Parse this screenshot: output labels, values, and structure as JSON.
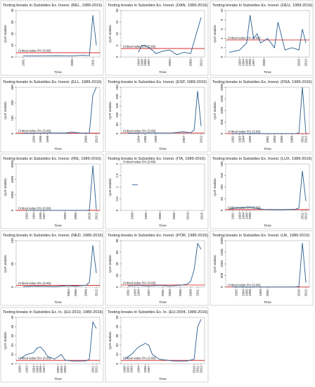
{
  "chart_data": [
    {
      "type": "line",
      "title": "Testing breaks in Subsidies Ex. Invest. (BEL, 1989-2016)",
      "y_label": "QLR statistic",
      "x_label": "Time",
      "color": "#2a5d8f",
      "x": [
        1991,
        1995,
        2000,
        2005,
        2008,
        2010,
        2011,
        2012
      ],
      "values": [
        1,
        1,
        1.2,
        1,
        1.5,
        1.2,
        36,
        10
      ],
      "xlim": [
        1989,
        2013
      ],
      "xticks": [
        1991,
        2005,
        2011
      ],
      "ylim": [
        0,
        40
      ],
      "yticks": [
        0,
        10,
        20,
        30,
        40
      ],
      "critical_value": 3.66,
      "critical_label": "Critical value 5% (3.66)",
      "critical_color": "#d01010"
    },
    {
      "type": "line",
      "title": "Testing breaks in Subsidies Ex. Invest. (DAN, 1989-2016)",
      "y_label": "QLR statistic",
      "x_label": "Time",
      "color": "#2a5d8f",
      "x": [
        1994,
        1995,
        1996,
        1998,
        1999,
        2001,
        2003,
        2005,
        2007,
        2009,
        2011,
        2012
      ],
      "values": [
        2,
        5,
        5,
        3,
        1.5,
        2.5,
        3,
        1,
        2,
        1.5,
        12,
        17
      ],
      "xlim": [
        1989,
        2013
      ],
      "xticks": [
        1994,
        1995,
        1996,
        1997,
        2003,
        2009,
        2012
      ],
      "ylim": [
        0,
        20
      ],
      "yticks": [
        0,
        5,
        10,
        15,
        20
      ],
      "critical_value": 3.66,
      "critical_label": "Critical value 5% (3.66)",
      "critical_color": "#d01010"
    },
    {
      "type": "line",
      "title": "Testing breaks in Subsidies Ex. Invest. (DEU, 1989-2016)",
      "y_label": "QLR statistic",
      "x_label": "Time",
      "color": "#2a5d8f",
      "x": [
        1990,
        1993,
        1995,
        1996,
        1997,
        1998,
        1999,
        2001,
        2003,
        2004,
        2006,
        2008,
        2010,
        2011,
        2012
      ],
      "values": [
        1,
        1.5,
        3,
        9,
        4,
        5,
        3,
        4,
        2,
        7.5,
        1.5,
        2,
        1.5,
        6,
        3
      ],
      "xlim": [
        1989,
        2013
      ],
      "xticks": [
        1993,
        1994,
        1995,
        1996,
        1997,
        2000,
        2010,
        2012
      ],
      "ylim": [
        0,
        10
      ],
      "yticks": [
        0,
        2,
        4,
        6,
        8,
        10
      ],
      "critical_value": 3.66,
      "critical_label": "Critical value 5% (3.66)",
      "critical_color": "#d01010"
    },
    {
      "type": "line",
      "title": "Testing breaks in Subsidies Ex. Invest. (ELL, 1989-2016)",
      "y_label": "QLR statistic",
      "x_label": "Time",
      "color": "#2a5d8f",
      "x": [
        1991,
        1995,
        1999,
        2003,
        2005,
        2008,
        2010,
        2011,
        2012
      ],
      "values": [
        2,
        3,
        5,
        4,
        10,
        3,
        5,
        250,
        300
      ],
      "xlim": [
        1989,
        2013
      ],
      "xticks": [
        1994,
        1996,
        1998,
        2009,
        2012
      ],
      "ylim": [
        0,
        300
      ],
      "yticks": [
        0,
        100,
        200,
        300
      ],
      "critical_value": 3.66,
      "critical_label": "Critical value 5% (3.66)",
      "critical_color": "#d01010"
    },
    {
      "type": "line",
      "title": "Testing breaks in Subsidies Ex. Invest. (ESP, 1989-2016)",
      "y_label": "QLR statistic",
      "x_label": "Time",
      "color": "#2a5d8f",
      "x": [
        1991,
        1995,
        1999,
        2003,
        2007,
        2009,
        2010,
        2011,
        2012
      ],
      "values": [
        2,
        3,
        4,
        3,
        10,
        5,
        20,
        230,
        40
      ],
      "xlim": [
        1989,
        2013
      ],
      "xticks": [
        1994,
        1996,
        1999,
        2007,
        2012
      ],
      "ylim": [
        0,
        250
      ],
      "yticks": [
        0,
        50,
        100,
        150,
        200,
        250
      ],
      "critical_value": 3.66,
      "critical_label": "Critical value 5% (3.66)",
      "critical_color": "#d01010"
    },
    {
      "type": "line",
      "title": "Testing breaks in Subsidies Ex. Invest. (FRA, 1989-2016)",
      "y_label": "QLR statistic",
      "x_label": "Time",
      "color": "#2a5d8f",
      "x": [
        1991,
        1996,
        2001,
        2006,
        2009,
        2010,
        2011,
        2012
      ],
      "values": [
        5,
        8,
        6,
        5,
        10,
        30,
        2000,
        20
      ],
      "xlim": [
        1989,
        2013
      ],
      "xticks": [
        1991,
        1993,
        1994,
        1996,
        2001,
        2003,
        2005,
        2008,
        2011,
        2012
      ],
      "ylim": [
        0,
        2000
      ],
      "yticks": [
        0,
        500,
        1000,
        1500,
        2000
      ],
      "critical_value": 3.66,
      "critical_label": "Critical value 5% (3.66)",
      "critical_color": "#d01010"
    },
    {
      "type": "line",
      "title": "Testing breaks in Subsidies Ex. Invest. (IRE, 1989-2016)",
      "y_label": "QLR statistic",
      "x_label": "Time",
      "color": "#2a5d8f",
      "x": [
        1992,
        1996,
        2001,
        2005,
        2009,
        2010,
        2011,
        2012
      ],
      "values": [
        5,
        4,
        6,
        5,
        10,
        50,
        5800,
        100
      ],
      "xlim": [
        1989,
        2013
      ],
      "xticks": [
        1992,
        1994,
        1996,
        1997,
        2003,
        2006,
        2010,
        2012
      ],
      "ylim": [
        0,
        6000
      ],
      "yticks": [
        0,
        2000,
        4000,
        6000
      ],
      "critical_value": 3.66,
      "critical_label": "Critical value 5% (3.66)",
      "critical_color": "#d01010"
    },
    {
      "type": "line",
      "title": "Testing breaks in Subsidies Ex. Invest. (ITA, 1989-2016)",
      "y_label": "QLR statistic",
      "x_label": "Time",
      "color": "#2a5d8f",
      "x": [
        1990,
        1992
      ],
      "values": [
        1.1,
        1.1
      ],
      "xlim": [
        1986,
        2016
      ],
      "xticks": [
        1990,
        1995,
        2000,
        2005,
        2010,
        2015
      ],
      "ylim": [
        0,
        2
      ],
      "yticks": [
        0,
        0.5,
        1,
        1.5,
        2
      ],
      "critical_label": "Critical value 5% (3.66)",
      "critical_color": "#d01010"
    },
    {
      "type": "line",
      "title": "Testing breaks in Subsidies Ex. Invest. (LUX, 1989-2016)",
      "y_label": "QLR statistic",
      "x_label": "Time",
      "color": "#2a5d8f",
      "x": [
        1990,
        1992,
        1994,
        1996,
        1998,
        2000,
        2005,
        2009,
        2010,
        2011,
        2012
      ],
      "values": [
        5,
        10,
        12,
        15,
        8,
        4,
        3,
        5,
        10,
        170,
        40
      ],
      "xlim": [
        1989,
        2013
      ],
      "xticks": [
        1991,
        1993,
        1994,
        1995,
        1996,
        2011,
        2012
      ],
      "ylim": [
        0,
        200
      ],
      "yticks": [
        0,
        50,
        100,
        150,
        200
      ],
      "critical_value": 3.66,
      "critical_label": "Critical value 5% (3.66)",
      "critical_color": "#d01010"
    },
    {
      "type": "line",
      "title": "Testing breaks in Subsidies Ex. Invest. (NED, 1989-2016)",
      "y_label": "QLR statistic",
      "x_label": "Time",
      "color": "#2a5d8f",
      "x": [
        1991,
        1995,
        2000,
        2004,
        2006,
        2009,
        2010,
        2011,
        2012
      ],
      "values": [
        1,
        2,
        1,
        3,
        2,
        4,
        10,
        90,
        30
      ],
      "xlim": [
        1989,
        2013
      ],
      "xticks": [
        2004,
        2006,
        2009,
        2012
      ],
      "ylim": [
        0,
        100
      ],
      "yticks": [
        0,
        50,
        100
      ],
      "critical_value": 3.66,
      "critical_label": "Critical value 5% (3.66)",
      "critical_color": "#d01010"
    },
    {
      "type": "line",
      "title": "Testing breaks in Subsidies Ex. Invest. (POR, 1989-2016)",
      "y_label": "QLR statistic",
      "x_label": "Time",
      "color": "#2a5d8f",
      "x": [
        1991,
        1994,
        1997,
        2000,
        2003,
        2006,
        2008,
        2009,
        2010,
        2011,
        2012
      ],
      "values": [
        2,
        3,
        2,
        3,
        2,
        3,
        5,
        10,
        30,
        75,
        65
      ],
      "xlim": [
        1989,
        2013
      ],
      "xticks": [
        1991,
        1993,
        1994,
        1997,
        2001,
        2003,
        2006,
        2009,
        2011
      ],
      "ylim": [
        0,
        80
      ],
      "yticks": [
        0,
        20,
        40,
        60,
        80
      ],
      "critical_value": 3.66,
      "critical_label": "Critical value 5% (3.66)",
      "critical_color": "#d01010"
    },
    {
      "type": "line",
      "title": "Testing breaks in Subsidies Ex. Invest. (UK, 1989-2016)",
      "y_label": "QLR statistic",
      "x_label": "Time",
      "color": "#2a5d8f",
      "x": [
        1991,
        1995,
        2000,
        2005,
        2009,
        2010,
        2011,
        2012
      ],
      "values": [
        5,
        4,
        6,
        5,
        8,
        30,
        1900,
        200
      ],
      "xlim": [
        1989,
        2013
      ],
      "xticks": [
        1992,
        1994,
        1995,
        1996,
        1999,
        2001,
        2010,
        2012
      ],
      "ylim": [
        0,
        2000
      ],
      "yticks": [
        0,
        500,
        1000,
        1500,
        2000
      ],
      "critical_value": 3.66,
      "critical_label": "Critical value 5% (3.66)",
      "critical_color": "#d01010"
    },
    {
      "type": "line",
      "title": "Testing breaks in Subsidies Ex. In. (EU-2010, 1989-2016)",
      "y_label": "QLR statistic",
      "x_label": "Time",
      "color": "#2a5d8f",
      "x": [
        1990,
        1992,
        1994,
        1995,
        1996,
        1997,
        1998,
        2000,
        2002,
        2003,
        2005,
        2009,
        2010,
        2011,
        2012
      ],
      "values": [
        5,
        10,
        12,
        17,
        18,
        14,
        8,
        5,
        10,
        4,
        3,
        3,
        5,
        45,
        38
      ],
      "xlim": [
        1989,
        2013
      ],
      "xticks": [
        1990,
        1992,
        1994,
        1995,
        1996,
        1997,
        2001,
        2002,
        2003,
        2011,
        2012
      ],
      "ylim": [
        0,
        50
      ],
      "yticks": [
        0,
        10,
        20,
        30,
        40,
        50
      ],
      "critical_value": 3.66,
      "critical_label": "Critical value 5% (3.66)",
      "critical_color": "#d01010"
    },
    {
      "type": "line",
      "title": "Testing breaks in Subsidies Ex. In. (EU-2004, 1989-2016)",
      "y_label": "QLR statistic",
      "x_label": "Time",
      "color": "#2a5d8f",
      "x": [
        1990,
        1992,
        1994,
        1996,
        1997,
        1998,
        2000,
        2004,
        2008,
        2010,
        2011,
        2012
      ],
      "values": [
        5,
        10,
        18,
        22,
        20,
        10,
        5,
        3,
        3,
        5,
        40,
        48
      ],
      "xlim": [
        1989,
        2013
      ],
      "xticks": [
        1990,
        1991,
        1992,
        1994,
        1996,
        1997,
        2010,
        2011,
        2012
      ],
      "ylim": [
        0,
        50
      ],
      "yticks": [
        0,
        10,
        20,
        30,
        40,
        50
      ],
      "critical_value": 3.66,
      "critical_label": "Critical value 5% (3.66)",
      "critical_color": "#d01010"
    }
  ]
}
